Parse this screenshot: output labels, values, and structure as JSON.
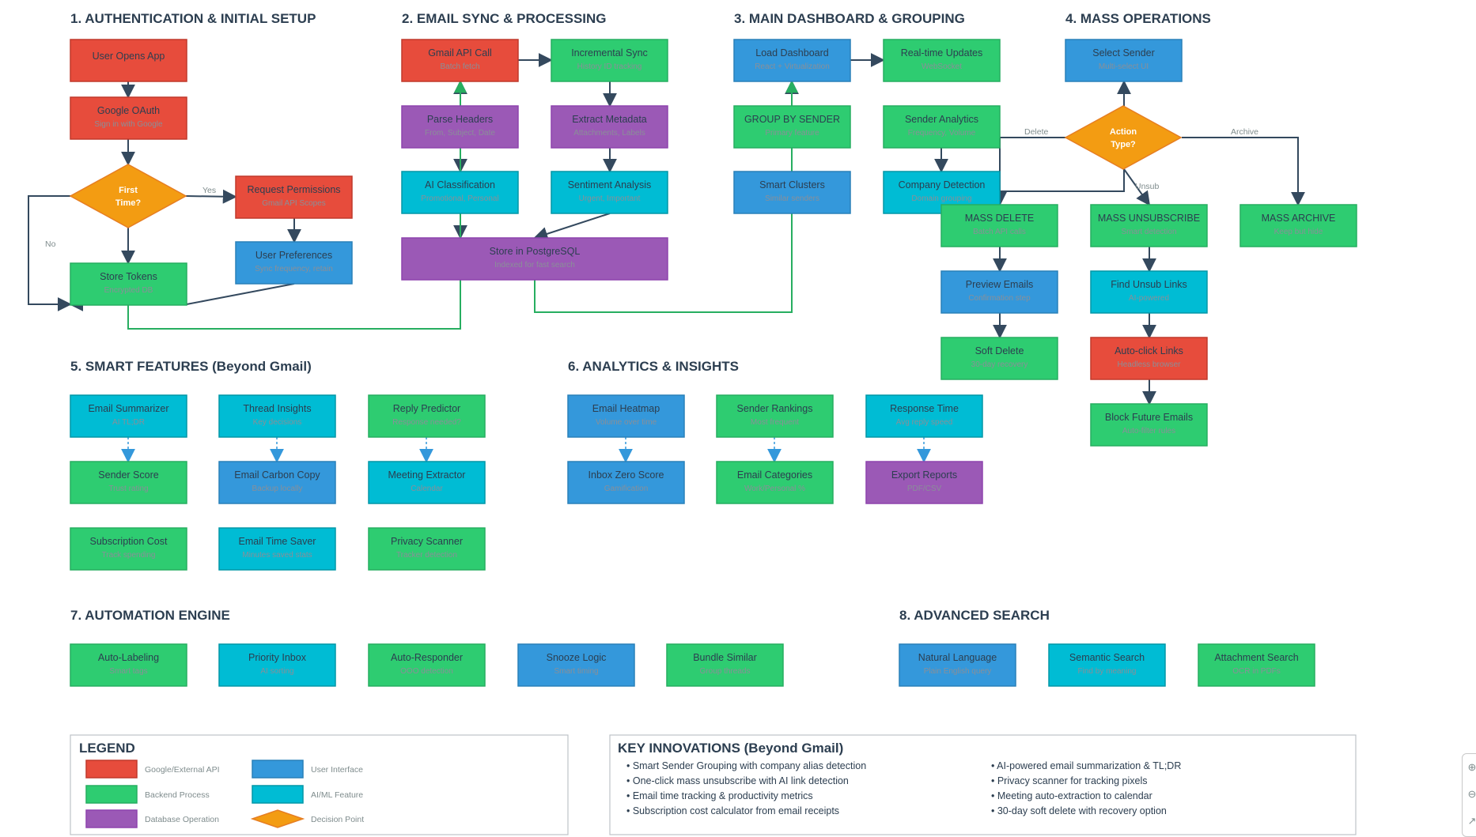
{
  "colors": {
    "google": "#e74c3c",
    "google_border": "#c0392b",
    "backend": "#2ecc71",
    "backend_border": "#27ae60",
    "database": "#9b59b6",
    "database_border": "#8e44ad",
    "ui": "#3498db",
    "ui_border": "#2980b9",
    "ai": "#00bcd4",
    "ai_border": "#0097a7",
    "decision": "#f39c12",
    "decision_border": "#e67e22",
    "edge": "#34495e",
    "feedback": "#27ae60",
    "dotted": "#3498db"
  },
  "sections": [
    {
      "id": "s1",
      "title": "1. AUTHENTICATION & INITIAL SETUP"
    },
    {
      "id": "s2",
      "title": "2. EMAIL SYNC & PROCESSING"
    },
    {
      "id": "s3",
      "title": "3. MAIN DASHBOARD & GROUPING"
    },
    {
      "id": "s4",
      "title": "4. MASS OPERATIONS"
    },
    {
      "id": "s5",
      "title": "5. SMART FEATURES (Beyond Gmail)"
    },
    {
      "id": "s6",
      "title": "6. ANALYTICS & INSIGHTS"
    },
    {
      "id": "s7",
      "title": "7. AUTOMATION ENGINE"
    },
    {
      "id": "s8",
      "title": "8. ADVANCED SEARCH"
    }
  ],
  "nodes": [
    {
      "id": "user-opens-app",
      "type": "google",
      "label": "User Opens App",
      "sub": ""
    },
    {
      "id": "google-oauth",
      "type": "google",
      "label": "Google OAuth",
      "sub": "Sign in with Google"
    },
    {
      "id": "first-time",
      "type": "decision",
      "label": "First",
      "label2": "Time?"
    },
    {
      "id": "request-permissions",
      "type": "google",
      "label": "Request Permissions",
      "sub": "Gmail API Scopes"
    },
    {
      "id": "user-preferences",
      "type": "ui",
      "label": "User Preferences",
      "sub": "Sync frequency, retain"
    },
    {
      "id": "store-tokens",
      "type": "backend",
      "label": "Store Tokens",
      "sub": "Encrypted DB"
    },
    {
      "id": "gmail-api-call",
      "type": "google",
      "label": "Gmail API Call",
      "sub": "Batch fetch"
    },
    {
      "id": "incremental-sync",
      "type": "backend",
      "label": "Incremental Sync",
      "sub": "History ID tracking"
    },
    {
      "id": "parse-headers",
      "type": "database",
      "label": "Parse Headers",
      "sub": "From, Subject, Date"
    },
    {
      "id": "extract-metadata",
      "type": "database",
      "label": "Extract Metadata",
      "sub": "Attachments, Labels"
    },
    {
      "id": "ai-classification",
      "type": "ai",
      "label": "AI Classification",
      "sub": "Promotional, Personal"
    },
    {
      "id": "sentiment-analysis",
      "type": "ai",
      "label": "Sentiment Analysis",
      "sub": "Urgent, Important"
    },
    {
      "id": "store-postgresql",
      "type": "database",
      "label": "Store in PostgreSQL",
      "sub": "Indexed for fast search"
    },
    {
      "id": "load-dashboard",
      "type": "ui",
      "label": "Load Dashboard",
      "sub": "React + Virtualization"
    },
    {
      "id": "realtime-updates",
      "type": "backend",
      "label": "Real-time Updates",
      "sub": "WebSocket"
    },
    {
      "id": "group-by-sender",
      "type": "backend",
      "label": "GROUP BY SENDER",
      "sub": "Primary feature"
    },
    {
      "id": "sender-analytics",
      "type": "backend",
      "label": "Sender Analytics",
      "sub": "Frequency, Volume"
    },
    {
      "id": "smart-clusters",
      "type": "ui",
      "label": "Smart Clusters",
      "sub": "Similar senders"
    },
    {
      "id": "company-detection",
      "type": "ai",
      "label": "Company Detection",
      "sub": "Domain grouping"
    },
    {
      "id": "select-sender",
      "type": "ui",
      "label": "Select Sender",
      "sub": "Multi-select UI"
    },
    {
      "id": "action-type",
      "type": "decision",
      "label": "Action",
      "label2": "Type?"
    },
    {
      "id": "mass-delete",
      "type": "backend",
      "label": "MASS DELETE",
      "sub": "Batch API calls"
    },
    {
      "id": "mass-unsubscribe",
      "type": "backend",
      "label": "MASS UNSUBSCRIBE",
      "sub": "Smart detection"
    },
    {
      "id": "mass-archive",
      "type": "backend",
      "label": "MASS ARCHIVE",
      "sub": "Keep but hide"
    },
    {
      "id": "preview-emails",
      "type": "ui",
      "label": "Preview Emails",
      "sub": "Confirmation step"
    },
    {
      "id": "find-unsub-links",
      "type": "ai",
      "label": "Find Unsub Links",
      "sub": "AI-powered"
    },
    {
      "id": "soft-delete",
      "type": "backend",
      "label": "Soft Delete",
      "sub": "30-day recovery"
    },
    {
      "id": "auto-click-links",
      "type": "google",
      "label": "Auto-click Links",
      "sub": "Headless browser"
    },
    {
      "id": "block-future-emails",
      "type": "backend",
      "label": "Block Future Emails",
      "sub": "Auto-filter rules"
    },
    {
      "id": "email-summarizer",
      "type": "ai",
      "label": "Email Summarizer",
      "sub": "AI TL;DR"
    },
    {
      "id": "thread-insights",
      "type": "ai",
      "label": "Thread Insights",
      "sub": "Key decisions"
    },
    {
      "id": "reply-predictor",
      "type": "backend",
      "label": "Reply Predictor",
      "sub": "Response needed?"
    },
    {
      "id": "sender-score",
      "type": "backend",
      "label": "Sender Score",
      "sub": "Trust rating"
    },
    {
      "id": "email-carbon-copy",
      "type": "ui",
      "label": "Email Carbon Copy",
      "sub": "Backup locally"
    },
    {
      "id": "meeting-extractor",
      "type": "ai",
      "label": "Meeting Extractor",
      "sub": "Calendar"
    },
    {
      "id": "subscription-cost",
      "type": "backend",
      "label": "Subscription Cost",
      "sub": "Track spending"
    },
    {
      "id": "email-time-saver",
      "type": "ai",
      "label": "Email Time Saver",
      "sub": "Minutes saved stats"
    },
    {
      "id": "privacy-scanner",
      "type": "backend",
      "label": "Privacy Scanner",
      "sub": "Tracker detection"
    },
    {
      "id": "email-heatmap",
      "type": "ui",
      "label": "Email Heatmap",
      "sub": "Volume over time"
    },
    {
      "id": "sender-rankings",
      "type": "backend",
      "label": "Sender Rankings",
      "sub": "Most frequent"
    },
    {
      "id": "response-time",
      "type": "ai",
      "label": "Response Time",
      "sub": "Avg reply speed"
    },
    {
      "id": "inbox-zero-score",
      "type": "ui",
      "label": "Inbox Zero Score",
      "sub": "Gamification"
    },
    {
      "id": "email-categories",
      "type": "backend",
      "label": "Email Categories",
      "sub": "Work/Personal %"
    },
    {
      "id": "export-reports",
      "type": "database",
      "label": "Export Reports",
      "sub": "PDF/CSV"
    },
    {
      "id": "auto-labeling",
      "type": "backend",
      "label": "Auto-Labeling",
      "sub": "Smart tags"
    },
    {
      "id": "priority-inbox",
      "type": "ai",
      "label": "Priority Inbox",
      "sub": "AI sorting"
    },
    {
      "id": "auto-responder",
      "type": "backend",
      "label": "Auto-Responder",
      "sub": "OOO detection"
    },
    {
      "id": "snooze-logic",
      "type": "ui",
      "label": "Snooze Logic",
      "sub": "Smart timing"
    },
    {
      "id": "bundle-similar",
      "type": "backend",
      "label": "Bundle Similar",
      "sub": "Group threads"
    },
    {
      "id": "natural-language",
      "type": "ui",
      "label": "Natural Language",
      "sub": "Plain English query"
    },
    {
      "id": "semantic-search",
      "type": "ai",
      "label": "Semantic Search",
      "sub": "Find by meaning"
    },
    {
      "id": "attachment-search",
      "type": "backend",
      "label": "Attachment Search",
      "sub": "OCR in PDFs"
    }
  ],
  "edge_labels": {
    "yes": "Yes",
    "no": "No",
    "delete": "Delete",
    "archive": "Archive",
    "unsub": "Unsub"
  },
  "legend": {
    "title": "LEGEND",
    "items": [
      {
        "type": "google",
        "label": "Google/External API"
      },
      {
        "type": "ui",
        "label": "User Interface"
      },
      {
        "type": "backend",
        "label": "Backend Process"
      },
      {
        "type": "ai",
        "label": "AI/ML Feature"
      },
      {
        "type": "database",
        "label": "Database Operation"
      },
      {
        "type": "decision",
        "label": "Decision Point"
      }
    ]
  },
  "innovations": {
    "title": "KEY INNOVATIONS (Beyond Gmail)",
    "items": [
      "• Smart Sender Grouping with company alias detection",
      "• One-click mass unsubscribe with AI link detection",
      "• Email time tracking & productivity metrics",
      "• Subscription cost calculator from email receipts",
      "• AI-powered email summarization & TL;DR",
      "• Privacy scanner for tracking pixels",
      "• Meeting auto-extraction to calendar",
      "• 30-day soft delete with recovery option"
    ]
  },
  "zoom": {
    "in_icon": "zoom-in-icon",
    "out_icon": "zoom-out-icon",
    "reset_icon": "fit-icon"
  }
}
